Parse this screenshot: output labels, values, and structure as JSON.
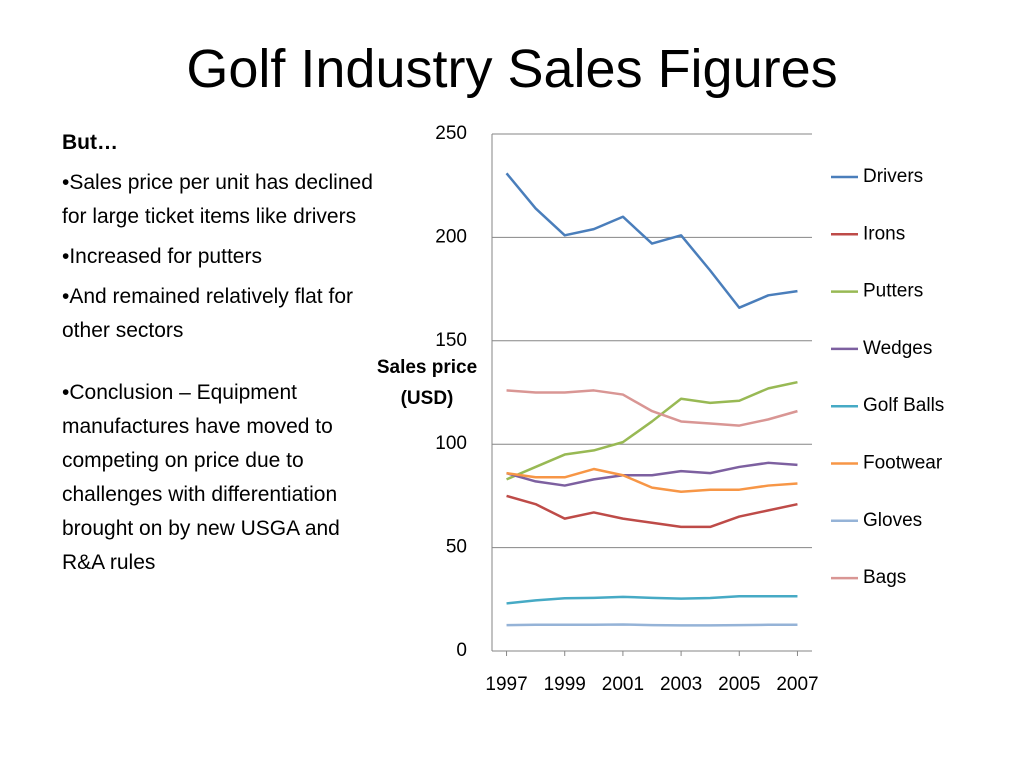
{
  "slide": {
    "title": "Golf Industry Sales Figures",
    "heading": "But…",
    "bullets": [
      "•Sales price per unit has declined for large ticket items like drivers",
      "•Increased for putters",
      "•And remained relatively flat for other sectors",
      "•Conclusion – Equipment manufactures have moved to competing on price due to challenges with differentiation brought on by new USGA and R&A rules"
    ]
  },
  "chart_data": {
    "type": "line",
    "y_label": "Sales price (USD)",
    "x": [
      1997,
      1998,
      1999,
      2000,
      2001,
      2002,
      2003,
      2004,
      2005,
      2006,
      2007
    ],
    "xlim": [
      1996.5,
      2007.5
    ],
    "xticks": [
      1997,
      1999,
      2001,
      2003,
      2005,
      2007
    ],
    "ylim": [
      0,
      250
    ],
    "yticks": [
      0,
      50,
      100,
      150,
      200,
      250
    ],
    "grid": true,
    "legend": "right",
    "series": [
      {
        "name": "Drivers",
        "color": "#4a7ebb",
        "values": [
          231,
          214,
          201,
          204,
          210,
          197,
          201,
          184,
          166,
          172,
          174
        ]
      },
      {
        "name": "Irons",
        "color": "#be4b48",
        "values": [
          75,
          71,
          64,
          67,
          64,
          62,
          60,
          60,
          65,
          68,
          71
        ]
      },
      {
        "name": "Putters",
        "color": "#98b954",
        "values": [
          83,
          89,
          95,
          97,
          101,
          111,
          122,
          120,
          121,
          127,
          130
        ]
      },
      {
        "name": "Wedges",
        "color": "#7d60a0",
        "values": [
          86,
          82,
          80,
          83,
          85,
          85,
          87,
          86,
          89,
          91,
          90
        ]
      },
      {
        "name": "Golf Balls",
        "color": "#46aac5",
        "values": [
          23,
          24.5,
          25.5,
          25.7,
          26.2,
          25.7,
          25.3,
          25.6,
          26.5,
          26.5,
          26.5
        ]
      },
      {
        "name": "Footwear",
        "color": "#f79646",
        "values": [
          86,
          84,
          84,
          88,
          85,
          79,
          77,
          78,
          78,
          80,
          81
        ]
      },
      {
        "name": "Gloves",
        "color": "#95b3d7",
        "values": [
          12.5,
          12.7,
          12.7,
          12.7,
          12.8,
          12.5,
          12.4,
          12.4,
          12.5,
          12.7,
          12.7
        ]
      },
      {
        "name": "Bags",
        "color": "#d99694",
        "values": [
          126,
          125,
          125,
          126,
          124,
          116,
          111,
          110,
          109,
          112,
          116
        ]
      }
    ]
  }
}
